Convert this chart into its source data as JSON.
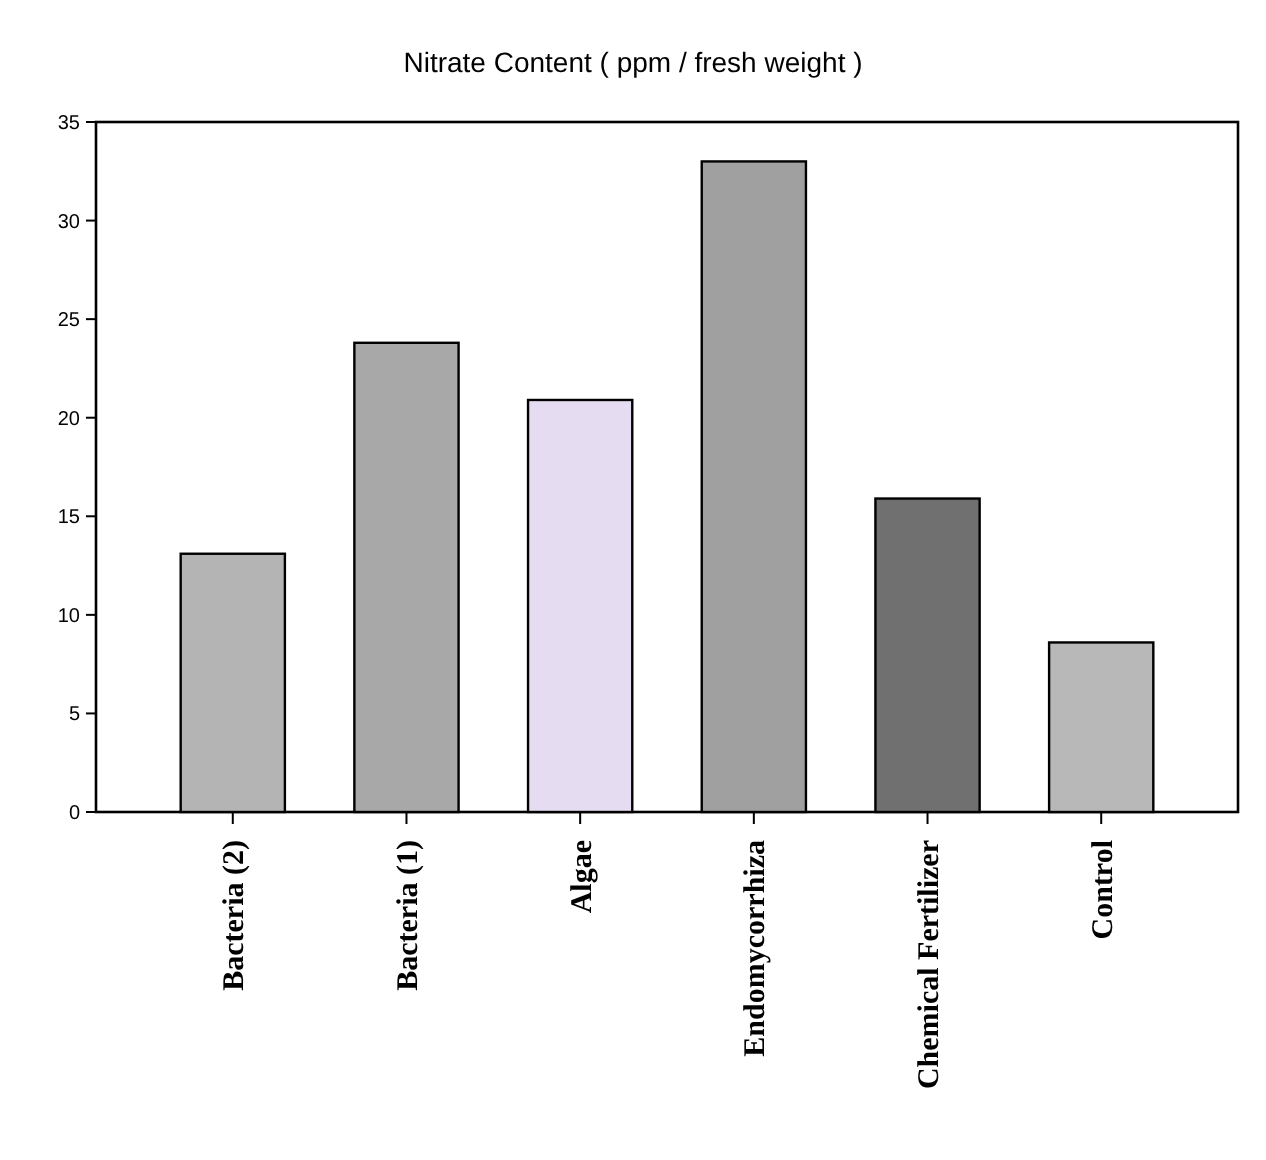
{
  "chart_data": {
    "type": "bar",
    "title": "Nitrate Content ( ppm / fresh weight )",
    "categories": [
      "Bacteria (2)",
      "Bacteria (1)",
      "Algae",
      "Endomycorrhiza",
      "Chemical Fertilizer",
      "Control"
    ],
    "values": [
      13.1,
      23.8,
      20.9,
      33.0,
      15.9,
      8.6
    ],
    "colors": [
      "#b4b4b4",
      "#a8a8a8",
      "#e6dcf2",
      "#a0a0a0",
      "#707070",
      "#b8b8b8"
    ],
    "ylim": [
      0,
      35
    ],
    "yticks": [
      0,
      5,
      10,
      15,
      20,
      25,
      30,
      35
    ],
    "grid": false
  }
}
